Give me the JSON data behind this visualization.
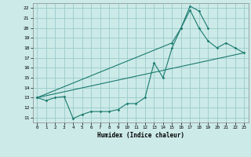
{
  "bg_color": "#cceae8",
  "grid_color": "#99ccca",
  "line_color": "#1a7a6e",
  "line1_x": [
    0,
    1,
    2,
    3,
    4,
    5,
    6,
    7,
    8,
    9,
    10,
    11,
    12,
    13,
    14,
    15,
    16,
    17,
    18,
    19
  ],
  "line1_y": [
    13.0,
    12.7,
    13.0,
    13.1,
    10.9,
    11.3,
    11.6,
    11.6,
    11.6,
    11.8,
    12.4,
    12.4,
    13.0,
    16.5,
    15.0,
    18.0,
    20.0,
    22.2,
    21.7,
    20.0
  ],
  "line2_x": [
    0,
    23
  ],
  "line2_y": [
    13.0,
    17.5
  ],
  "line3_x": [
    0,
    15,
    16,
    17,
    18,
    19,
    20,
    21,
    22,
    23
  ],
  "line3_y": [
    13.0,
    18.5,
    20.0,
    21.8,
    20.0,
    18.7,
    18.0,
    18.5,
    18.0,
    17.5
  ],
  "xlim": [
    -0.5,
    23.5
  ],
  "ylim": [
    10.5,
    22.5
  ],
  "yticks": [
    11,
    12,
    13,
    14,
    15,
    16,
    17,
    18,
    19,
    20,
    21,
    22
  ],
  "xticks": [
    0,
    1,
    2,
    3,
    4,
    5,
    6,
    7,
    8,
    9,
    10,
    11,
    12,
    13,
    14,
    15,
    16,
    17,
    18,
    19,
    20,
    21,
    22,
    23
  ],
  "xlabel": "Humidex (Indice chaleur)"
}
